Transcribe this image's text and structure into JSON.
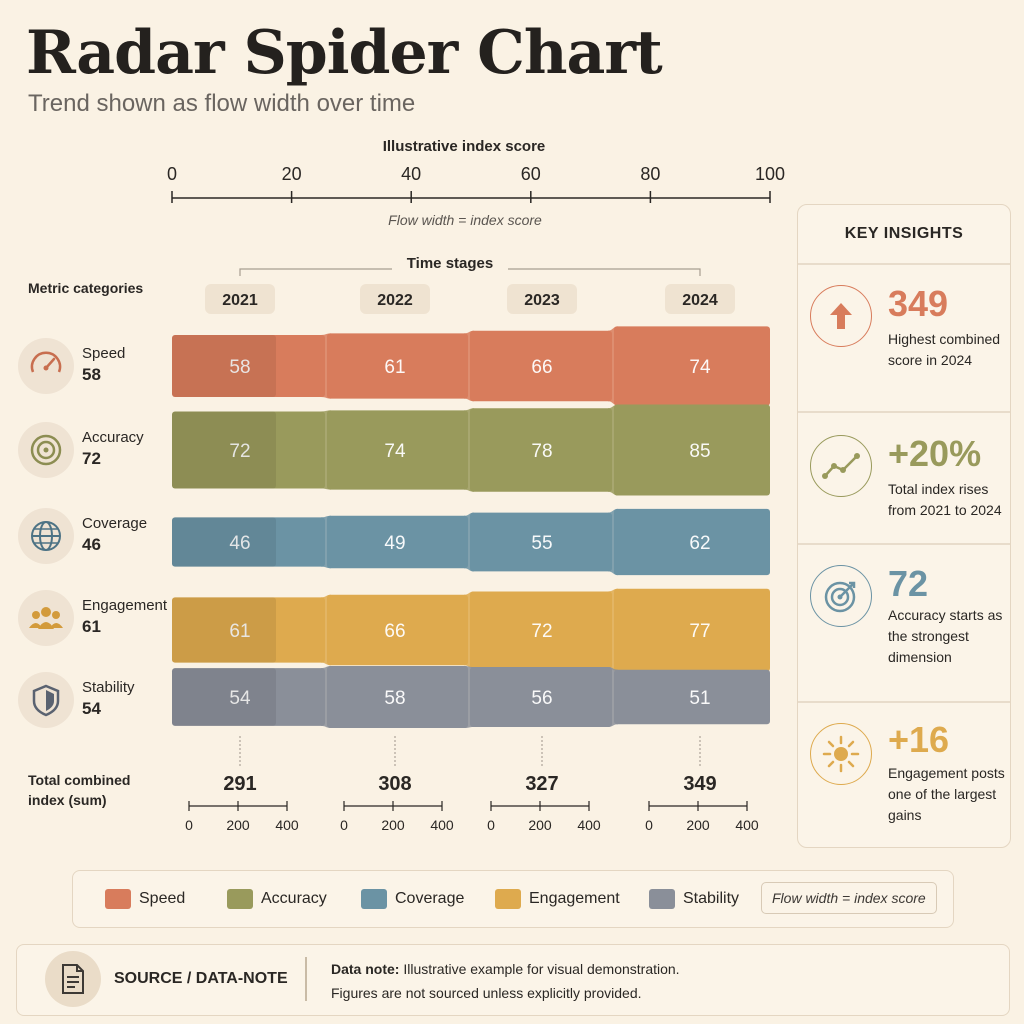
{
  "title": "Radar Spider Chart",
  "subtitle": "Trend shown as flow width over time",
  "colors": {
    "speed": "#d87c5c",
    "accuracy": "#999a5c",
    "coverage": "#6b93a4",
    "engagement": "#deaa4e",
    "stability": "#8a8f99"
  },
  "chart_data": {
    "type": "area",
    "title": "Radar Spider Chart",
    "subtitle": "Trend shown as flow width over time",
    "index_axis": {
      "label": "Illustrative index score",
      "ticks": [
        "0",
        "20",
        "40",
        "60",
        "80",
        "100"
      ],
      "range": [
        0,
        100
      ],
      "note": "Flow width = index score"
    },
    "time_axis_label": "Time stages",
    "metric_axis_label": "Metric categories",
    "x": [
      "2021",
      "2022",
      "2023",
      "2024"
    ],
    "series": [
      {
        "name": "Speed",
        "icon": "speedometer-icon",
        "start_label": "58",
        "values": [
          58,
          61,
          66,
          74
        ]
      },
      {
        "name": "Accuracy",
        "icon": "target-icon",
        "start_label": "72",
        "values": [
          72,
          74,
          78,
          85
        ]
      },
      {
        "name": "Coverage",
        "icon": "globe-icon",
        "start_label": "46",
        "values": [
          46,
          49,
          55,
          62
        ]
      },
      {
        "name": "Engagement",
        "icon": "people-icon",
        "start_label": "61",
        "values": [
          61,
          66,
          72,
          77
        ]
      },
      {
        "name": "Stability",
        "icon": "shield-icon",
        "start_label": "54",
        "values": [
          54,
          58,
          56,
          51
        ]
      }
    ],
    "totals": {
      "label_line1": "Total combined",
      "label_line2": "index (sum)",
      "values": [
        291,
        308,
        327,
        349
      ],
      "labels": [
        "291",
        "308",
        "327",
        "349"
      ],
      "mini_axis_ticks": [
        "0",
        "200",
        "400"
      ],
      "mini_axis_range": [
        0,
        400
      ]
    },
    "grid": false,
    "legend": "bottom"
  },
  "insights": {
    "title": "KEY INSIGHTS",
    "items": [
      {
        "icon": "arrow-up-icon",
        "value": "349",
        "text": "Highest combined score in 2024",
        "color": "#d87c5c"
      },
      {
        "icon": "trend-line-icon",
        "value": "+20%",
        "text": "Total index rises from 2021 to 2024",
        "color": "#999a5c"
      },
      {
        "icon": "target-icon",
        "value": "72",
        "text": "Accuracy starts as the strongest dimension",
        "color": "#6b93a4"
      },
      {
        "icon": "sun-icon",
        "value": "+16",
        "text": "Engagement posts one of the largest gains",
        "color": "#deaa4e"
      }
    ]
  },
  "legend": {
    "items": [
      "Speed",
      "Accuracy",
      "Coverage",
      "Engagement",
      "Stability"
    ],
    "note": "Flow width = index score"
  },
  "source": {
    "icon": "document-icon",
    "label": "SOURCE / DATA-NOTE",
    "note_bold": "Data note:",
    "note_rest": " Illustrative example for visual demonstration.",
    "note_line2": "Figures are not sourced unless explicitly provided."
  }
}
